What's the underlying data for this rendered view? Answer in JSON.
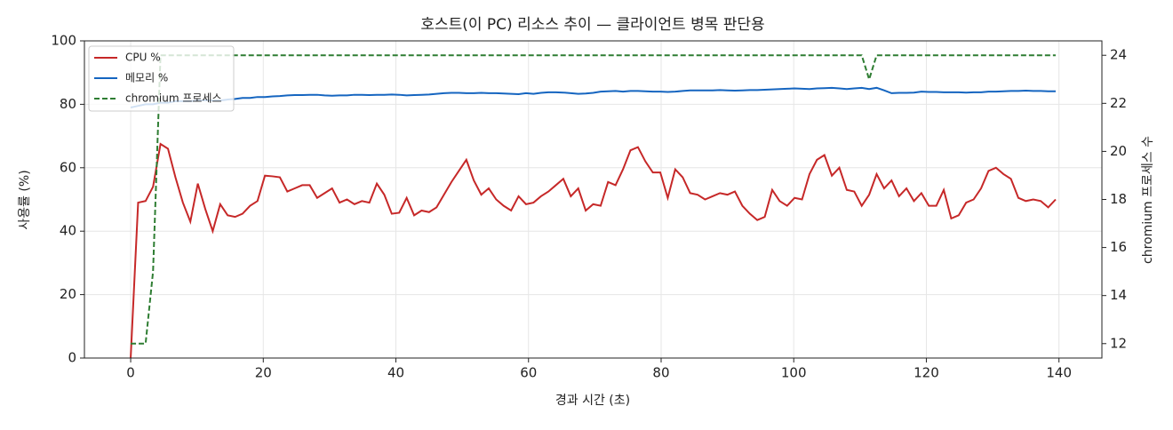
{
  "chart_data": {
    "type": "line",
    "title": "호스트(이 PC) 리소스 추이 — 클라이언트 병목 판단용",
    "x_label": "경과 시간 (초)",
    "y_label": "사용률 (%)",
    "y2_label": "chromium 프로세스 수",
    "x": [
      0,
      1.125,
      2.25,
      3.375,
      4.5,
      5.625,
      6.75,
      7.875,
      9,
      10.125,
      11.25,
      12.375,
      13.5,
      14.625,
      15.75,
      16.875,
      18,
      19.125,
      20.25,
      21.375,
      22.5,
      23.625,
      24.75,
      25.875,
      27,
      28.125,
      29.25,
      30.375,
      31.5,
      32.625,
      33.75,
      34.875,
      36,
      37.125,
      38.25,
      39.375,
      40.5,
      41.625,
      42.75,
      43.875,
      45,
      46.125,
      47.25,
      48.375,
      49.5,
      50.625,
      51.75,
      52.875,
      54,
      55.125,
      56.25,
      57.375,
      58.5,
      59.625,
      60.75,
      61.875,
      63,
      64.125,
      65.25,
      66.375,
      67.5,
      68.625,
      69.75,
      70.875,
      72,
      73.125,
      74.25,
      75.375,
      76.5,
      77.625,
      78.75,
      79.875,
      81,
      82.125,
      83.25,
      84.375,
      85.5,
      86.625,
      87.75,
      88.875,
      90,
      91.125,
      92.25,
      93.375,
      94.5,
      95.625,
      96.75,
      97.875,
      99,
      100.125,
      101.25,
      102.375,
      103.5,
      104.625,
      105.75,
      106.875,
      108,
      109.125,
      110.25,
      111.375,
      112.5,
      113.625,
      114.75,
      115.875,
      117,
      118.125,
      119.25,
      120.375,
      121.5,
      122.625,
      123.75,
      124.875,
      126,
      127.125,
      128.25,
      129.375,
      130.5,
      131.625,
      132.75,
      133.875,
      135,
      136.125,
      137.25,
      138.375,
      139.5
    ],
    "series": [
      {
        "name": "CPU %",
        "color": "#c62828",
        "axis": "y",
        "values": [
          0,
          49,
          49.5,
          54,
          67.5,
          66,
          57,
          49,
          43,
          55,
          47,
          40,
          48.5,
          45,
          44.5,
          45.5,
          48,
          49.5,
          57.5,
          57.3,
          57,
          52.5,
          53.5,
          54.5,
          54.5,
          50.5,
          52,
          53.5,
          49,
          50,
          48.5,
          49.5,
          49,
          55,
          51.5,
          45.5,
          45.8,
          50.5,
          45,
          46.5,
          46,
          47.5,
          51.5,
          55.5,
          59,
          62.5,
          56,
          51.5,
          53.5,
          50,
          48,
          46.5,
          51,
          48.5,
          49,
          51,
          52.5,
          54.5,
          56.5,
          51,
          53.5,
          46.5,
          48.5,
          48,
          55.5,
          54.5,
          59.5,
          65.5,
          66.5,
          62,
          58.5,
          58.5,
          50.5,
          59.5,
          57,
          52,
          51.5,
          50,
          51,
          52,
          51.5,
          52.5,
          48,
          45.5,
          43.5,
          44.5,
          53,
          49.5,
          48,
          50.5,
          50,
          58,
          62.5,
          64,
          57.5,
          60,
          53,
          52.5,
          48,
          51.5,
          58,
          53.5,
          56,
          51,
          53.5,
          49.5,
          52,
          48,
          48,
          53,
          44,
          45,
          49,
          50,
          53.5,
          59,
          60,
          58,
          56.5,
          50.5,
          49.5,
          50,
          49.5,
          47.5,
          50
        ]
      },
      {
        "name": "메모리 %",
        "color": "#1565c0",
        "axis": "y",
        "values": [
          79,
          79.5,
          80,
          80,
          80.5,
          80.5,
          81,
          81,
          81,
          81.2,
          81.3,
          81.2,
          81.2,
          81.5,
          81.7,
          82,
          82,
          82.3,
          82.3,
          82.5,
          82.6,
          82.8,
          82.9,
          82.9,
          83,
          83,
          82.8,
          82.7,
          82.8,
          82.8,
          83,
          83,
          82.9,
          83,
          83,
          83.1,
          83,
          82.8,
          82.9,
          83,
          83.1,
          83.3,
          83.5,
          83.6,
          83.6,
          83.5,
          83.5,
          83.6,
          83.5,
          83.5,
          83.4,
          83.3,
          83.2,
          83.5,
          83.3,
          83.6,
          83.8,
          83.8,
          83.7,
          83.5,
          83.3,
          83.4,
          83.6,
          84,
          84.1,
          84.2,
          84,
          84.2,
          84.2,
          84.1,
          84,
          84,
          83.9,
          84,
          84.2,
          84.4,
          84.4,
          84.4,
          84.4,
          84.5,
          84.4,
          84.3,
          84.4,
          84.5,
          84.5,
          84.6,
          84.7,
          84.8,
          84.9,
          85,
          84.9,
          84.8,
          85,
          85.1,
          85.2,
          85,
          84.8,
          85,
          85.2,
          84.8,
          85.2,
          84.4,
          83.5,
          83.6,
          83.6,
          83.7,
          84,
          83.9,
          83.9,
          83.8,
          83.8,
          83.8,
          83.7,
          83.8,
          83.8,
          84,
          84,
          84.1,
          84.2,
          84.2,
          84.3,
          84.2,
          84.2,
          84.1,
          84.1
        ]
      },
      {
        "name": "chromium 프로세스",
        "color": "#2e7d32",
        "axis": "y2",
        "dashed": true,
        "values": [
          12,
          12,
          12,
          15,
          24,
          24,
          24,
          24,
          24,
          24,
          24,
          24,
          24,
          24,
          24,
          24,
          24,
          24,
          24,
          24,
          24,
          24,
          24,
          24,
          24,
          24,
          24,
          24,
          24,
          24,
          24,
          24,
          24,
          24,
          24,
          24,
          24,
          24,
          24,
          24,
          24,
          24,
          24,
          24,
          24,
          24,
          24,
          24,
          24,
          24,
          24,
          24,
          24,
          24,
          24,
          24,
          24,
          24,
          24,
          24,
          24,
          24,
          24,
          24,
          24,
          24,
          24,
          24,
          24,
          24,
          24,
          24,
          24,
          24,
          24,
          24,
          24,
          24,
          24,
          24,
          24,
          24,
          24,
          24,
          24,
          24,
          24,
          24,
          24,
          24,
          24,
          24,
          24,
          24,
          24,
          24,
          24,
          24,
          24,
          23,
          24,
          24,
          24,
          24,
          24,
          24,
          24,
          24,
          24,
          24,
          24,
          24,
          24,
          24,
          24,
          24,
          24,
          24,
          24,
          24,
          24,
          24,
          24,
          24,
          24
        ]
      }
    ],
    "xlim": [
      -6.975,
      146.475
    ],
    "xticks": [
      0,
      20,
      40,
      60,
      80,
      100,
      120,
      140
    ],
    "ylim": [
      0,
      100
    ],
    "yticks": [
      0,
      20,
      40,
      60,
      80,
      100
    ],
    "y2lim": [
      11.4,
      24.6
    ],
    "y2ticks": [
      12,
      14,
      16,
      18,
      20,
      22,
      24
    ],
    "grid": true,
    "legend": "upper left"
  }
}
